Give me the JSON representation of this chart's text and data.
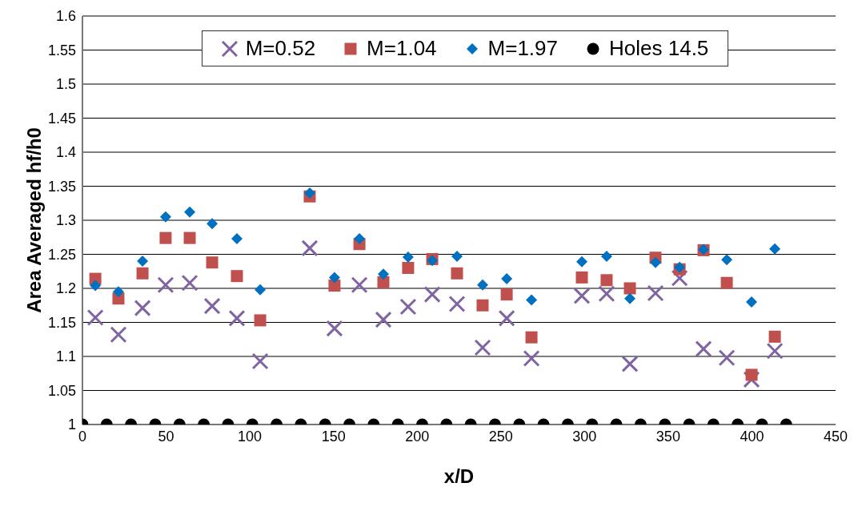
{
  "chart_data": {
    "type": "scatter",
    "xlabel": "x/D",
    "ylabel": "Area Averaged hf/h0",
    "xlim": [
      0,
      450
    ],
    "xticks": [
      0,
      50,
      100,
      150,
      200,
      250,
      300,
      350,
      400,
      450
    ],
    "ylim": [
      1,
      1.6
    ],
    "yticks": [
      1,
      1.05,
      1.1,
      1.15,
      1.2,
      1.25,
      1.3,
      1.35,
      1.4,
      1.45,
      1.5,
      1.55,
      1.6
    ],
    "grid": "y",
    "legend": "top",
    "x": [
      7.7,
      21.5,
      35.9,
      49.7,
      64.1,
      77.5,
      92.3,
      106.2,
      135.8,
      150.6,
      165.5,
      179.8,
      194.6,
      209,
      223.8,
      239.1,
      253.5,
      268.3,
      298.4,
      313.2,
      327.1,
      342.4,
      356.8,
      371.1,
      385,
      399.8,
      413.7
    ],
    "series": [
      {
        "name": "M=0.52",
        "color": "#8064a2",
        "marker": "cross",
        "values": [
          1.157,
          1.132,
          1.171,
          1.205,
          1.208,
          1.174,
          1.156,
          1.093,
          1.259,
          1.141,
          1.205,
          1.154,
          1.173,
          1.191,
          1.177,
          1.113,
          1.156,
          1.097,
          1.189,
          1.192,
          1.089,
          1.193,
          1.215,
          1.111,
          1.098,
          1.066,
          1.108
        ]
      },
      {
        "name": "M=1.04",
        "color": "#c0504d",
        "marker": "square",
        "values": [
          1.214,
          1.185,
          1.222,
          1.274,
          1.274,
          1.238,
          1.218,
          1.153,
          1.335,
          1.204,
          1.265,
          1.209,
          1.23,
          1.243,
          1.222,
          1.175,
          1.191,
          1.128,
          1.216,
          1.212,
          1.2,
          1.245,
          1.228,
          1.256,
          1.208,
          1.073,
          1.129
        ]
      },
      {
        "name": "M=1.97",
        "color": "#0070c0",
        "marker": "diamond",
        "values": [
          1.204,
          1.195,
          1.24,
          1.305,
          1.312,
          1.295,
          1.273,
          1.198,
          1.34,
          1.216,
          1.273,
          1.221,
          1.246,
          1.241,
          1.247,
          1.205,
          1.214,
          1.183,
          1.239,
          1.247,
          1.185,
          1.238,
          1.231,
          1.257,
          1.242,
          1.18,
          1.258
        ]
      },
      {
        "name": "Holes 14.5",
        "color": "#000000",
        "marker": "circle",
        "x": [
          0,
          14.5,
          29,
          43.5,
          58,
          72.5,
          87,
          101.5,
          116,
          130.5,
          145,
          159.5,
          174,
          188.5,
          203,
          217.5,
          232,
          246.5,
          261,
          275.5,
          290,
          304.5,
          319,
          333.5,
          348,
          362.5,
          377,
          391.5,
          406,
          420.5
        ],
        "values": [
          1,
          1,
          1,
          1,
          1,
          1,
          1,
          1,
          1,
          1,
          1,
          1,
          1,
          1,
          1,
          1,
          1,
          1,
          1,
          1,
          1,
          1,
          1,
          1,
          1,
          1,
          1,
          1,
          1,
          1
        ]
      }
    ]
  }
}
